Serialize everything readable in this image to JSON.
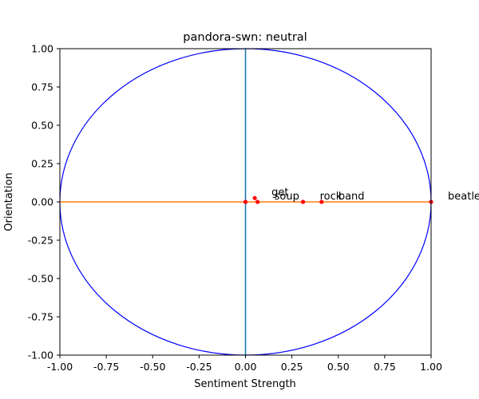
{
  "chart_data": {
    "type": "scatter",
    "title": "pandora-swn: neutral",
    "xlabel": "Sentiment Strength",
    "ylabel": "Orientation",
    "xlim": [
      -1.0,
      1.0
    ],
    "ylim": [
      -1.0,
      1.0
    ],
    "grid": false,
    "x_ticks": [
      "-1.00",
      "-0.75",
      "-0.50",
      "-0.25",
      "0.00",
      "0.25",
      "0.50",
      "0.75",
      "1.00"
    ],
    "y_ticks": [
      "1.00",
      "0.75",
      "0.50",
      "0.25",
      "0.00",
      "-0.25",
      "-0.50",
      "-0.75",
      "-1.00"
    ],
    "x_tick_values": [
      -1.0,
      -0.75,
      -0.5,
      -0.25,
      0.0,
      0.25,
      0.5,
      0.75,
      1.0
    ],
    "y_tick_values": [
      1.0,
      0.75,
      0.5,
      0.25,
      0.0,
      -0.25,
      -0.5,
      -0.75,
      -1.0
    ],
    "unit_circle": {
      "center": [
        0,
        0
      ],
      "radius": 1.0,
      "color": "#0000ff"
    },
    "reference_lines": [
      {
        "orientation": "vertical",
        "value": 0.0,
        "color": "#1f77b4"
      },
      {
        "orientation": "horizontal",
        "value": 0.0,
        "color": "#ff7f0e"
      }
    ],
    "points_color": "#ff0000",
    "points": [
      {
        "label": "",
        "x": 0.0,
        "y": 0.0
      },
      {
        "label": "get",
        "x": 0.05,
        "y": 0.025
      },
      {
        "label": "soup",
        "x": 0.065,
        "y": 0.0
      },
      {
        "label": "rock",
        "x": 0.31,
        "y": 0.0
      },
      {
        "label": "band",
        "x": 0.41,
        "y": 0.0
      },
      {
        "label": "beatle",
        "x": 1.0,
        "y": 0.0
      }
    ]
  }
}
